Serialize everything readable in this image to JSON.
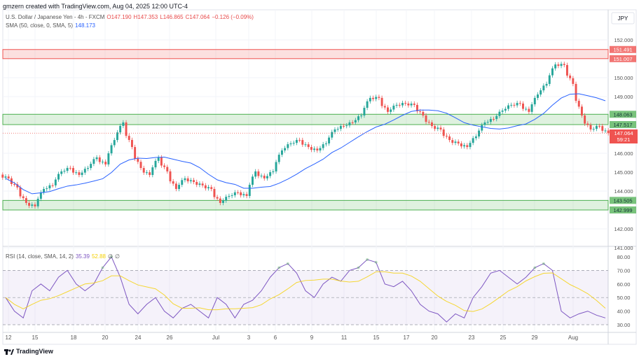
{
  "caption": "gmzern created with TradingView.com, Aug 04, 2025 12:00 UTC-4",
  "symbol": {
    "name": "U.S. Dollar / Japanese Yen - 4h - FXCM",
    "open": "O147.190",
    "high": "H147.353",
    "low": "L146.865",
    "close": "C147.064",
    "change": "−0.126 (−0.09%)"
  },
  "sma": {
    "label": "SMA (50, close, 0, SMA, 5)",
    "value": "148.173"
  },
  "rsi": {
    "label": "RSI (14, close, SMA, 14, 2)",
    "value": "35.39",
    "sma_value": "52.88",
    "extra1": "∅",
    "extra2": "∅"
  },
  "currency": "JPY",
  "current": {
    "price": "147.064",
    "countdown": "59:21"
  },
  "footer": "TradingView",
  "colors": {
    "up": "#26a69a",
    "down": "#ef5350",
    "sma": "#2962ff",
    "rsi": "#7e57c2",
    "rsi_sma": "#f5d000",
    "resistance": "#ef5350",
    "support": "#4caf50"
  },
  "chart_data": {
    "type": "candlestick",
    "ylim": [
      141,
      152.6
    ],
    "yticks": [
      "152.000",
      "150.000",
      "149.000",
      "146.000",
      "145.000",
      "144.000",
      "142.000",
      "141.000"
    ],
    "xticks": [
      "12",
      "15",
      "18",
      "20",
      "24",
      "26",
      "Jul",
      "3",
      "6",
      "9",
      "11",
      "15",
      "17",
      "20",
      "23",
      "25",
      "29",
      "Aug"
    ],
    "zones": [
      {
        "type": "resistance",
        "low": 151.007,
        "high": 151.491,
        "low_label": "151.007",
        "high_label": "151.491"
      },
      {
        "type": "support",
        "low": 147.517,
        "high": 148.063,
        "low_label": "147.517",
        "high_label": "148.063"
      },
      {
        "type": "support",
        "low": 142.999,
        "high": 143.505,
        "low_label": "142.999",
        "high_label": "143.505"
      }
    ],
    "closes": [
      144.67,
      144.19,
      143.37,
      143.19,
      144.11,
      144.3,
      145.04,
      145.22,
      144.85,
      145.22,
      145.78,
      145.41,
      146.7,
      147.63,
      146.33,
      145.22,
      144.85,
      145.78,
      145.04,
      144.11,
      144.67,
      144.48,
      144.3,
      144.11,
      143.37,
      143.74,
      143.93,
      143.74,
      145.04,
      144.67,
      145.04,
      146.15,
      146.52,
      146.7,
      146.33,
      146.15,
      146.52,
      147.26,
      147.44,
      147.63,
      148.0,
      148.93,
      148.93,
      148.19,
      148.56,
      148.63,
      148.56,
      148.0,
      147.44,
      147.26,
      146.7,
      146.52,
      146.33,
      146.89,
      147.63,
      147.81,
      148.26,
      148.56,
      148.63,
      148.19,
      149.11,
      149.67,
      150.7,
      150.67,
      149.67,
      148.0,
      147.26,
      147.44,
      147.06
    ],
    "rsi": {
      "ylim": [
        25,
        85
      ],
      "yticks": [
        "80.00",
        "70.00",
        "60.00",
        "50.00",
        "40.00",
        "30.00"
      ],
      "bands": [
        70,
        50,
        30
      ],
      "values": [
        50,
        40,
        35,
        55,
        60,
        55,
        65,
        70,
        60,
        55,
        60,
        72,
        80,
        65,
        45,
        38,
        45,
        50,
        40,
        35,
        42,
        45,
        40,
        35,
        50,
        45,
        35,
        45,
        48,
        55,
        65,
        72,
        75,
        68,
        55,
        50,
        60,
        65,
        62,
        70,
        72,
        78,
        76,
        60,
        58,
        62,
        55,
        45,
        40,
        38,
        32,
        38,
        35,
        50,
        58,
        68,
        70,
        65,
        60,
        65,
        72,
        75,
        70,
        40,
        35,
        38,
        40,
        37,
        35
      ]
    }
  }
}
